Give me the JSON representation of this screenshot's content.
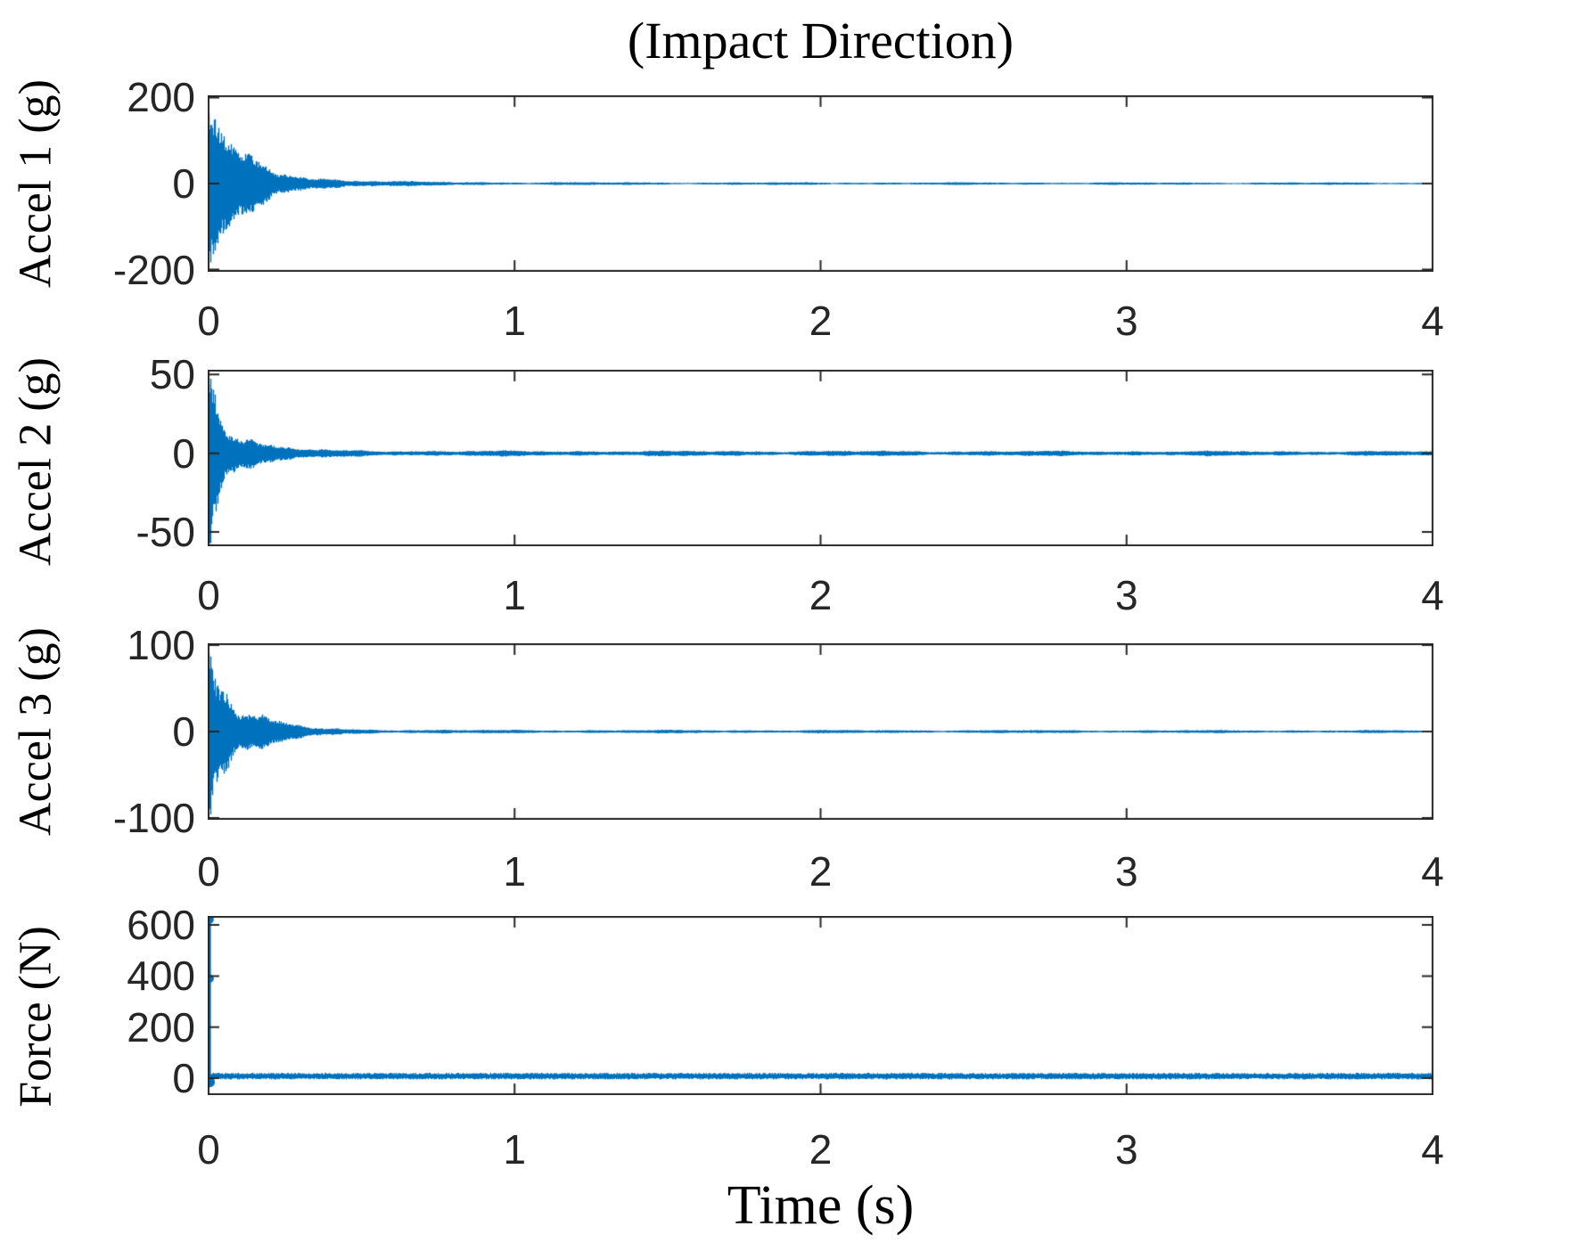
{
  "title": "(Impact Direction)",
  "xlabel": "Time (s)",
  "colors": {
    "line": "#0072BD",
    "axis": "#262626",
    "tick_label": "#262626",
    "label_text": "#000000",
    "background": "#ffffff"
  },
  "chart_data": [
    {
      "type": "line",
      "name": "accel-1",
      "ylabel": "Accel 1 (g)",
      "xlim": [
        0,
        4
      ],
      "ylim": [
        -205,
        205
      ],
      "xticks": [
        0,
        1,
        2,
        3,
        4
      ],
      "yticks": [
        200,
        0,
        -200
      ],
      "grid": false,
      "legend": null,
      "signal": {
        "kind": "impact-ring-down",
        "peak_g": 165,
        "negative_peak_g": -175,
        "steady_band_g": 2,
        "neg_scale": 1.06,
        "envelope_t_s": [
          0,
          0.03,
          0.08,
          0.15,
          0.25,
          0.4,
          0.6,
          0.9,
          1.5,
          4
        ],
        "envelope_amp_g": [
          165,
          120,
          70,
          42,
          22,
          10,
          4.5,
          2.8,
          2.2,
          2
        ]
      }
    },
    {
      "type": "line",
      "name": "accel-2",
      "ylabel": "Accel 2 (g)",
      "xlim": [
        0,
        4
      ],
      "ylim": [
        -59,
        53
      ],
      "xticks": [
        0,
        1,
        2,
        3,
        4
      ],
      "yticks": [
        50,
        0,
        -50
      ],
      "grid": false,
      "legend": null,
      "signal": {
        "kind": "impact-ring-down",
        "peak_g": 52,
        "negative_peak_g": -58,
        "steady_band_g": 1.2,
        "neg_scale": 1.12,
        "envelope_t_s": [
          0,
          0.02,
          0.05,
          0.1,
          0.15,
          0.25,
          0.4,
          0.7,
          4
        ],
        "envelope_amp_g": [
          52,
          40,
          25,
          13,
          7.5,
          3.2,
          1.7,
          1.3,
          1.1
        ]
      }
    },
    {
      "type": "line",
      "name": "accel-3",
      "ylabel": "Accel 3 (g)",
      "xlim": [
        0,
        4
      ],
      "ylim": [
        -102,
        102
      ],
      "xticks": [
        0,
        1,
        2,
        3,
        4
      ],
      "yticks": [
        100,
        0,
        -100
      ],
      "grid": false,
      "legend": null,
      "signal": {
        "kind": "impact-ring-down",
        "peak_g": 95,
        "negative_peak_g": -97,
        "steady_band_g": 1.2,
        "neg_scale": 1.05,
        "envelope_t_s": [
          0,
          0.03,
          0.07,
          0.12,
          0.2,
          0.3,
          0.45,
          0.8,
          4
        ],
        "envelope_amp_g": [
          95,
          66,
          42,
          25,
          13,
          5.5,
          2.4,
          1.5,
          1.2
        ]
      }
    },
    {
      "type": "line",
      "name": "force",
      "ylabel": "Force (N)",
      "xlim": [
        0,
        4
      ],
      "ylim": [
        -66,
        635
      ],
      "xticks": [
        0,
        1,
        2,
        3,
        4
      ],
      "yticks": [
        600,
        400,
        200,
        0
      ],
      "grid": false,
      "legend": null,
      "signal": {
        "kind": "impact-force",
        "spike_time_s": 0.004,
        "spike_peak_N": 632,
        "spike_min_N": -20,
        "marker_values_N": [
          632,
          390,
          -15
        ],
        "baseline_mean_N": 8,
        "baseline_noise_N": 13
      }
    }
  ]
}
